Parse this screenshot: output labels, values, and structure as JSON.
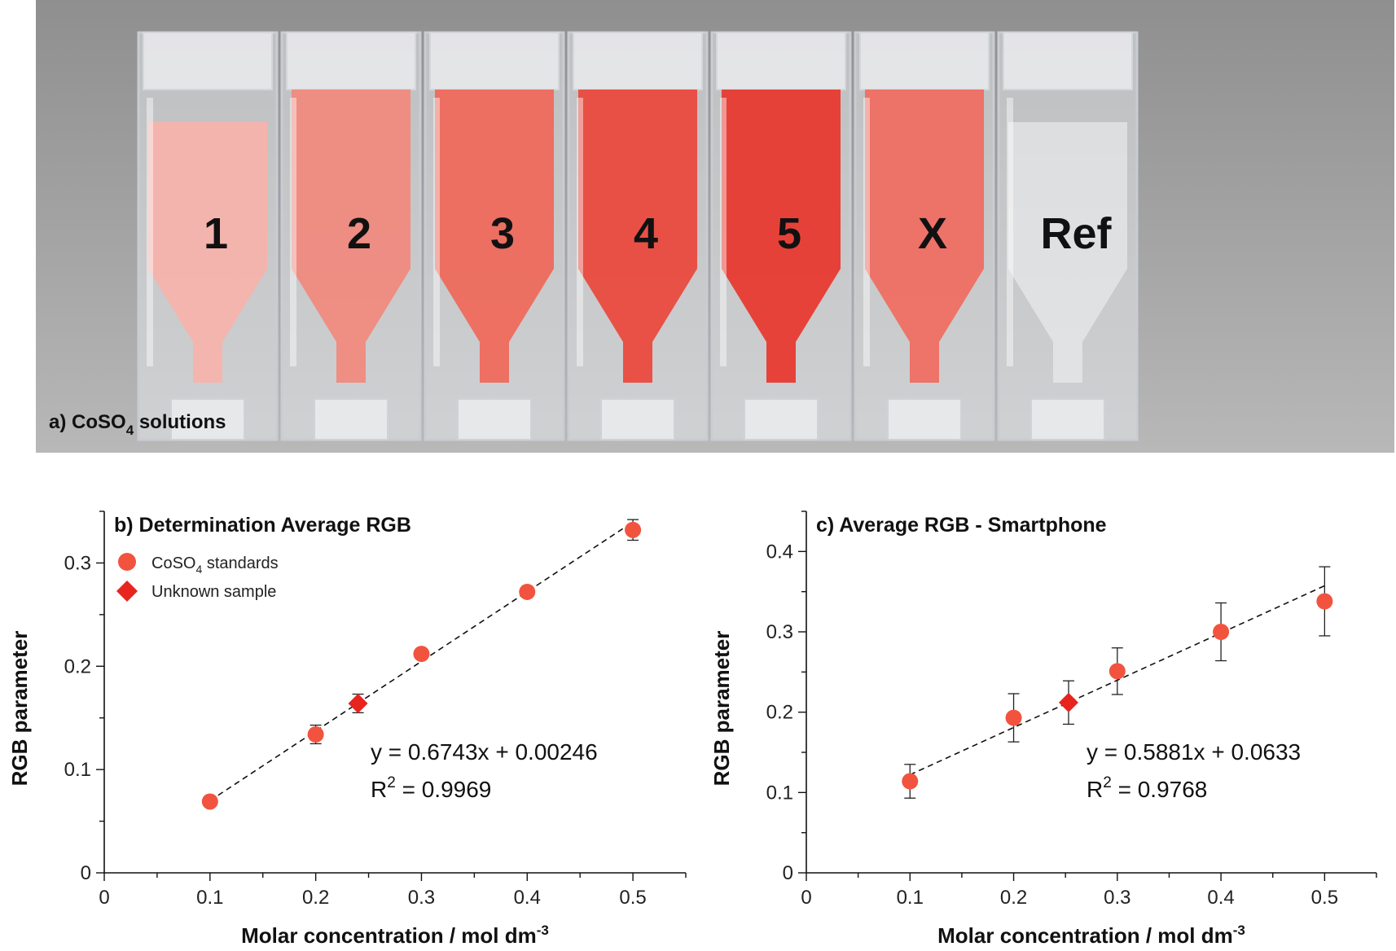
{
  "photo": {
    "caption_main": "a) CoSO",
    "caption_sub": "4",
    "caption_rest": " solutions",
    "cuvettes": [
      {
        "label": "1",
        "color": "#f5b3ac"
      },
      {
        "label": "2",
        "color": "#f08a7e"
      },
      {
        "label": "3",
        "color": "#ee6a5c"
      },
      {
        "label": "4",
        "color": "#ea4a3e"
      },
      {
        "label": "5",
        "color": "#e83a30"
      },
      {
        "label": "X",
        "color": "#ef6e62"
      },
      {
        "label": "Ref",
        "color": "#eef0f2"
      }
    ]
  },
  "legend": {
    "standards_pre": "CoSO",
    "standards_sub": "4",
    "standards_post": " standards",
    "unknown": "Unknown sample"
  },
  "colors": {
    "marker": "#f2533f",
    "unknown": "#e8241e",
    "fit": "#111111"
  },
  "chart_data": [
    {
      "type": "scatter",
      "title": "b) Determination Average RGB",
      "xlabel_pre": "Molar concentration / mol dm",
      "xlabel_sup": "-3",
      "ylabel": "RGB parameter",
      "xlim": [
        0,
        0.55
      ],
      "ylim": [
        0,
        0.35
      ],
      "xticks": [
        0,
        0.1,
        0.2,
        0.3,
        0.4,
        0.5
      ],
      "yticks": [
        0,
        0.1,
        0.2,
        0.3
      ],
      "xtick_labels": [
        "0",
        "0.1",
        "0.2",
        "0.3",
        "0.4",
        "0.5"
      ],
      "ytick_labels": [
        "0",
        "0.1",
        "0.2",
        "0.3"
      ],
      "standards": {
        "x": [
          0.1,
          0.2,
          0.3,
          0.4,
          0.5
        ],
        "y": [
          0.069,
          0.134,
          0.212,
          0.272,
          0.332
        ],
        "err": [
          0.004,
          0.009,
          0.005,
          0.005,
          0.01
        ]
      },
      "unknown": {
        "x": 0.24,
        "y": 0.164,
        "err": 0.009
      },
      "fit": {
        "slope": 0.6743,
        "intercept": 0.00246,
        "x_range": [
          0.1,
          0.5
        ]
      },
      "equation": "y = 0.6743x + 0.00246",
      "r2_pre": "R",
      "r2_sup": "2",
      "r2_post": " = 0.9969"
    },
    {
      "type": "scatter",
      "title": "c) Average RGB - Smartphone",
      "xlabel_pre": "Molar concentration / mol dm",
      "xlabel_sup": "-3",
      "ylabel": "RGB parameter",
      "xlim": [
        0,
        0.55
      ],
      "ylim": [
        0,
        0.45
      ],
      "xticks": [
        0,
        0.1,
        0.2,
        0.3,
        0.4,
        0.5
      ],
      "yticks": [
        0,
        0.1,
        0.2,
        0.3,
        0.4
      ],
      "xtick_labels": [
        "0",
        "0.1",
        "0.2",
        "0.3",
        "0.4",
        "0.5"
      ],
      "ytick_labels": [
        "0",
        "0.1",
        "0.2",
        "0.3",
        "0.4"
      ],
      "standards": {
        "x": [
          0.1,
          0.2,
          0.3,
          0.4,
          0.5
        ],
        "y": [
          0.114,
          0.193,
          0.251,
          0.3,
          0.338
        ],
        "err": [
          0.021,
          0.03,
          0.029,
          0.036,
          0.043
        ]
      },
      "unknown": {
        "x": 0.253,
        "y": 0.212,
        "err": 0.027
      },
      "fit": {
        "slope": 0.5881,
        "intercept": 0.0633,
        "x_range": [
          0.1,
          0.5
        ]
      },
      "equation": "y = 0.5881x + 0.0633",
      "r2_pre": "R",
      "r2_sup": "2",
      "r2_post": " = 0.9768"
    }
  ]
}
